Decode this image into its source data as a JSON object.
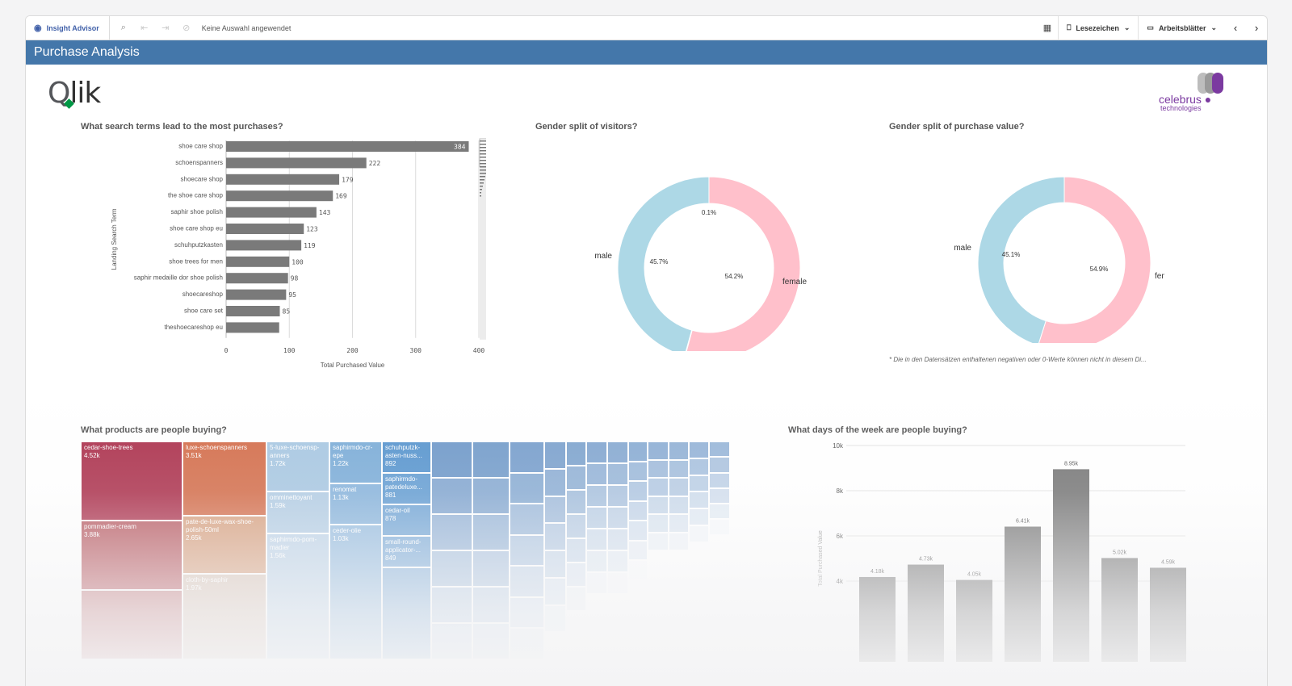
{
  "toolbar": {
    "insight_advisor_label": "Insight Advisor",
    "selections_text": "Keine Auswahl angewendet",
    "bookmarks_label": "Lesezeichen",
    "sheets_label": "Arbeitsblätter",
    "icons": [
      "eye-icon",
      "smart-search-icon",
      "step-back-icon",
      "step-forward-icon",
      "clear-selections-icon",
      "grid-icon",
      "bookmark-icon",
      "sheet-icon",
      "chevron-left-icon",
      "chevron-right-icon"
    ]
  },
  "sheet_title": "Purchase Analysis",
  "logos": {
    "qlik": "Qlik",
    "celebrus": "celebrus",
    "celebrus_sub": "technologies"
  },
  "search_terms_chart": {
    "title": "What search terms lead to the most purchases?",
    "ylabel": "Landing Search Term",
    "xlabel": "Total Purchased Value",
    "xticks": [
      "0",
      "100",
      "200",
      "300",
      "400"
    ]
  },
  "visitors_chart": {
    "title": "Gender split of visitors?"
  },
  "purchase_value_chart": {
    "title": "Gender split of purchase value?",
    "footnote": "* Die in den Datensätzen enthaltenen negativen oder 0-Werte können nicht in diesem Di..."
  },
  "products_chart": {
    "title": "What products are people buying?"
  },
  "weekdays_chart": {
    "title": "What days of the week are people buying?",
    "ylabel": "Total Purchased Value",
    "yticks": [
      "10k",
      "8k",
      "6k",
      "4k"
    ]
  },
  "colors": {
    "accent": "#4477aa",
    "bar": "#7a7a7a",
    "male": "#add8e6",
    "female": "#ffc0cb",
    "qlik_green": "#009845",
    "celebrus_purple": "#7b3aa0"
  },
  "chart_data": [
    {
      "type": "bar",
      "orientation": "horizontal",
      "title": "What search terms lead to the most purchases?",
      "categories": [
        "shoe care shop",
        "schoenspanners",
        "shoecare shop",
        "the shoe care shop",
        "saphir shoe polish",
        "shoe care shop eu",
        "schuhputzkasten",
        "shoe trees for men",
        "saphir medaille dor shoe polish",
        "shoecareshop",
        "shoe care set",
        "theshoecareshop eu"
      ],
      "values": [
        384,
        222,
        179,
        169,
        143,
        123,
        119,
        100,
        98,
        95,
        85,
        84
      ],
      "value_labels": [
        "384",
        "222",
        "179",
        "169",
        "143",
        "123",
        "119",
        "100",
        "98",
        "95",
        "85",
        ""
      ],
      "xlabel": "Total Purchased Value",
      "ylabel": "Landing Search Term",
      "xlim": [
        0,
        400
      ]
    },
    {
      "type": "pie",
      "donut": true,
      "title": "Gender split of visitors?",
      "slices": [
        {
          "name": "female",
          "value": 54.2,
          "label": "54.2%"
        },
        {
          "name": "",
          "value": 0.1,
          "label": "0.1%"
        },
        {
          "name": "male",
          "value": 45.7,
          "label": "45.7%"
        }
      ]
    },
    {
      "type": "pie",
      "donut": true,
      "title": "Gender split of purchase value?",
      "slices": [
        {
          "name": "female",
          "value": 54.9,
          "label": "54.9%"
        },
        {
          "name": "male",
          "value": 45.1,
          "label": "45.1%"
        }
      ]
    },
    {
      "type": "treemap",
      "title": "What products are people buying?",
      "items": [
        {
          "name": "cedar-shoe-trees",
          "value": "4.52k"
        },
        {
          "name": "pommadier-cream",
          "value": "3.88k"
        },
        {
          "name": "",
          "value": ""
        },
        {
          "name": "luxe-schoenspanners",
          "value": "3.51k"
        },
        {
          "name": "pate-de-luxe-wax-shoe-polish-50ml",
          "value": "2.65k"
        },
        {
          "name": "cloth-by-saphir",
          "value": "1.97k"
        },
        {
          "name": "5-luxe-schoensp-anners",
          "value": "1.72k"
        },
        {
          "name": "omminettoyant",
          "value": "1.59k"
        },
        {
          "name": "saphirmdo-pom-madier",
          "value": "1.56k"
        },
        {
          "name": "saphirmdo-cr-epe",
          "value": "1.22k"
        },
        {
          "name": "renomat",
          "value": "1.13k"
        },
        {
          "name": "ceder-olie",
          "value": "1.03k"
        },
        {
          "name": "schuhputzk-asten-nuss...",
          "value": "892"
        },
        {
          "name": "saphirmdo-patedeluxe...",
          "value": "881"
        },
        {
          "name": "cedar-oil",
          "value": "878"
        },
        {
          "name": "small-round-applicator-...",
          "value": "849"
        },
        {
          "name": "",
          "value": ""
        }
      ]
    },
    {
      "type": "bar",
      "title": "What days of the week are people buying?",
      "ylabel": "Total Purchased Value",
      "categories": [
        "",
        "",
        "",
        "",
        "",
        "",
        ""
      ],
      "values": [
        4180,
        4730,
        4050,
        6410,
        8950,
        5020,
        4590
      ],
      "value_labels": [
        "4.18k",
        "4.73k",
        "4.05k",
        "6.41k",
        "8.95k",
        "5.02k",
        "4.59k"
      ],
      "ylim": [
        0,
        10000
      ]
    }
  ]
}
